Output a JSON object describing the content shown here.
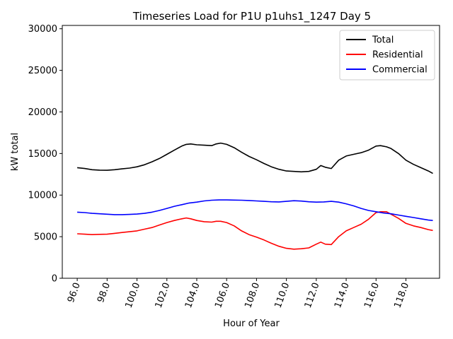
{
  "chart_data": {
    "type": "line",
    "title": "Timeseries Load for P1U p1uhs1_1247  Day 5",
    "xlabel": "Hour of Year",
    "ylabel": "kW total",
    "xlim": [
      95.0,
      120.25
    ],
    "ylim": [
      0,
      30400
    ],
    "xticks": [
      96,
      98,
      100,
      102,
      104,
      106,
      108,
      110,
      112,
      114,
      116,
      118
    ],
    "xtick_labels": [
      "96.0",
      "98.0",
      "100.0",
      "102.0",
      "104.0",
      "106.0",
      "108.0",
      "110.0",
      "112.0",
      "114.0",
      "116.0",
      "118.0"
    ],
    "yticks": [
      0,
      5000,
      10000,
      15000,
      20000,
      25000,
      30000
    ],
    "ytick_labels": [
      "0",
      "5000",
      "10000",
      "15000",
      "20000",
      "25000",
      "30000"
    ],
    "legend_position": "top-right",
    "series": [
      {
        "name": "Total",
        "color": "#000000",
        "points": [
          [
            96.0,
            13300
          ],
          [
            96.5,
            13200
          ],
          [
            97.0,
            13050
          ],
          [
            97.5,
            13000
          ],
          [
            98.0,
            12980
          ],
          [
            98.5,
            13050
          ],
          [
            99.0,
            13150
          ],
          [
            99.5,
            13250
          ],
          [
            100.0,
            13400
          ],
          [
            100.5,
            13650
          ],
          [
            101.0,
            14000
          ],
          [
            101.5,
            14400
          ],
          [
            102.0,
            14900
          ],
          [
            102.5,
            15400
          ],
          [
            103.0,
            15900
          ],
          [
            103.3,
            16100
          ],
          [
            103.6,
            16150
          ],
          [
            104.0,
            16050
          ],
          [
            104.5,
            16000
          ],
          [
            105.0,
            15950
          ],
          [
            105.3,
            16150
          ],
          [
            105.6,
            16250
          ],
          [
            106.0,
            16100
          ],
          [
            106.5,
            15700
          ],
          [
            107.0,
            15150
          ],
          [
            107.5,
            14650
          ],
          [
            108.0,
            14250
          ],
          [
            108.5,
            13800
          ],
          [
            109.0,
            13400
          ],
          [
            109.5,
            13100
          ],
          [
            110.0,
            12900
          ],
          [
            110.5,
            12850
          ],
          [
            111.0,
            12800
          ],
          [
            111.5,
            12850
          ],
          [
            112.0,
            13100
          ],
          [
            112.3,
            13550
          ],
          [
            112.6,
            13350
          ],
          [
            113.0,
            13200
          ],
          [
            113.5,
            14200
          ],
          [
            114.0,
            14700
          ],
          [
            114.5,
            14900
          ],
          [
            115.0,
            15100
          ],
          [
            115.5,
            15400
          ],
          [
            116.0,
            15900
          ],
          [
            116.3,
            15950
          ],
          [
            116.7,
            15800
          ],
          [
            117.0,
            15600
          ],
          [
            117.5,
            15000
          ],
          [
            118.0,
            14200
          ],
          [
            118.5,
            13700
          ],
          [
            119.0,
            13300
          ],
          [
            119.5,
            12900
          ],
          [
            119.8,
            12600
          ]
        ]
      },
      {
        "name": "Residential",
        "color": "#ff0000",
        "points": [
          [
            96.0,
            5350
          ],
          [
            96.5,
            5300
          ],
          [
            97.0,
            5250
          ],
          [
            97.5,
            5280
          ],
          [
            98.0,
            5300
          ],
          [
            98.5,
            5400
          ],
          [
            99.0,
            5500
          ],
          [
            99.5,
            5600
          ],
          [
            100.0,
            5700
          ],
          [
            100.5,
            5900
          ],
          [
            101.0,
            6100
          ],
          [
            101.5,
            6400
          ],
          [
            102.0,
            6700
          ],
          [
            102.5,
            6950
          ],
          [
            103.0,
            7150
          ],
          [
            103.3,
            7250
          ],
          [
            103.6,
            7150
          ],
          [
            104.0,
            6950
          ],
          [
            104.5,
            6800
          ],
          [
            105.0,
            6750
          ],
          [
            105.3,
            6850
          ],
          [
            105.6,
            6850
          ],
          [
            106.0,
            6700
          ],
          [
            106.5,
            6300
          ],
          [
            107.0,
            5700
          ],
          [
            107.5,
            5250
          ],
          [
            108.0,
            4950
          ],
          [
            108.5,
            4600
          ],
          [
            109.0,
            4200
          ],
          [
            109.5,
            3850
          ],
          [
            110.0,
            3600
          ],
          [
            110.5,
            3500
          ],
          [
            111.0,
            3550
          ],
          [
            111.5,
            3650
          ],
          [
            112.0,
            4100
          ],
          [
            112.3,
            4350
          ],
          [
            112.6,
            4100
          ],
          [
            113.0,
            4050
          ],
          [
            113.5,
            5000
          ],
          [
            114.0,
            5700
          ],
          [
            114.5,
            6100
          ],
          [
            115.0,
            6500
          ],
          [
            115.5,
            7100
          ],
          [
            116.0,
            7900
          ],
          [
            116.3,
            8000
          ],
          [
            116.7,
            8000
          ],
          [
            117.0,
            7700
          ],
          [
            117.5,
            7200
          ],
          [
            118.0,
            6600
          ],
          [
            118.5,
            6300
          ],
          [
            119.0,
            6100
          ],
          [
            119.5,
            5850
          ],
          [
            119.8,
            5750
          ]
        ]
      },
      {
        "name": "Commercial",
        "color": "#0000ff",
        "points": [
          [
            96.0,
            7950
          ],
          [
            96.5,
            7900
          ],
          [
            97.0,
            7800
          ],
          [
            97.5,
            7750
          ],
          [
            98.0,
            7700
          ],
          [
            98.5,
            7650
          ],
          [
            99.0,
            7650
          ],
          [
            99.5,
            7680
          ],
          [
            100.0,
            7720
          ],
          [
            100.5,
            7800
          ],
          [
            101.0,
            7950
          ],
          [
            101.5,
            8150
          ],
          [
            102.0,
            8400
          ],
          [
            102.5,
            8650
          ],
          [
            103.0,
            8850
          ],
          [
            103.5,
            9050
          ],
          [
            104.0,
            9150
          ],
          [
            104.5,
            9300
          ],
          [
            105.0,
            9380
          ],
          [
            105.5,
            9420
          ],
          [
            106.0,
            9420
          ],
          [
            106.5,
            9400
          ],
          [
            107.0,
            9380
          ],
          [
            107.5,
            9350
          ],
          [
            108.0,
            9300
          ],
          [
            108.5,
            9250
          ],
          [
            109.0,
            9200
          ],
          [
            109.5,
            9180
          ],
          [
            110.0,
            9250
          ],
          [
            110.5,
            9320
          ],
          [
            111.0,
            9280
          ],
          [
            111.5,
            9200
          ],
          [
            112.0,
            9150
          ],
          [
            112.5,
            9180
          ],
          [
            113.0,
            9250
          ],
          [
            113.5,
            9150
          ],
          [
            114.0,
            8950
          ],
          [
            114.5,
            8700
          ],
          [
            115.0,
            8400
          ],
          [
            115.5,
            8150
          ],
          [
            116.0,
            8000
          ],
          [
            116.5,
            7850
          ],
          [
            117.0,
            7750
          ],
          [
            117.5,
            7600
          ],
          [
            118.0,
            7450
          ],
          [
            118.5,
            7300
          ],
          [
            119.0,
            7150
          ],
          [
            119.5,
            7000
          ],
          [
            119.8,
            6950
          ]
        ]
      }
    ]
  }
}
